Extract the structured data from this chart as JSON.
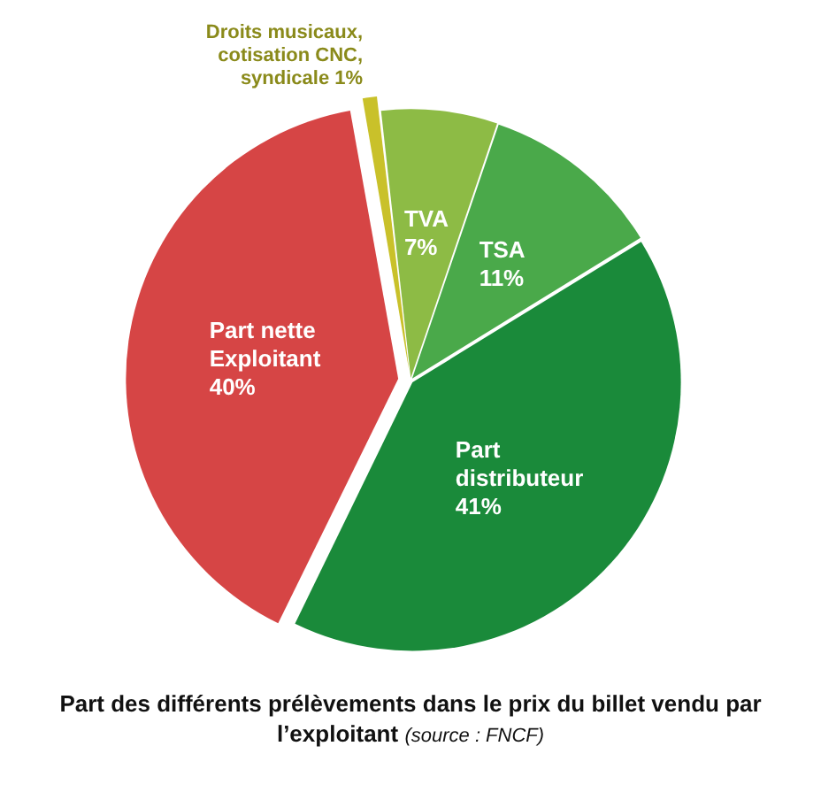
{
  "chart_data": {
    "type": "pie",
    "title": "Part des différents prélèvements dans le prix du billet vendu par l’exploitant",
    "annotations": [
      "(source : FNCF)"
    ],
    "categories": [
      "Droits musicaux, cotisation CNC, syndicale",
      "TVA",
      "TSA",
      "Part distributeur",
      "Part nette Exploitant"
    ],
    "values": [
      1,
      7,
      11,
      41,
      40
    ],
    "colors": [
      "#c9c12a",
      "#8dbb45",
      "#4aa94a",
      "#1a8a3a",
      "#d64545"
    ],
    "value_labels": [
      "1%",
      "7%",
      "11%",
      "41%",
      "40%"
    ],
    "legend": false
  }
}
